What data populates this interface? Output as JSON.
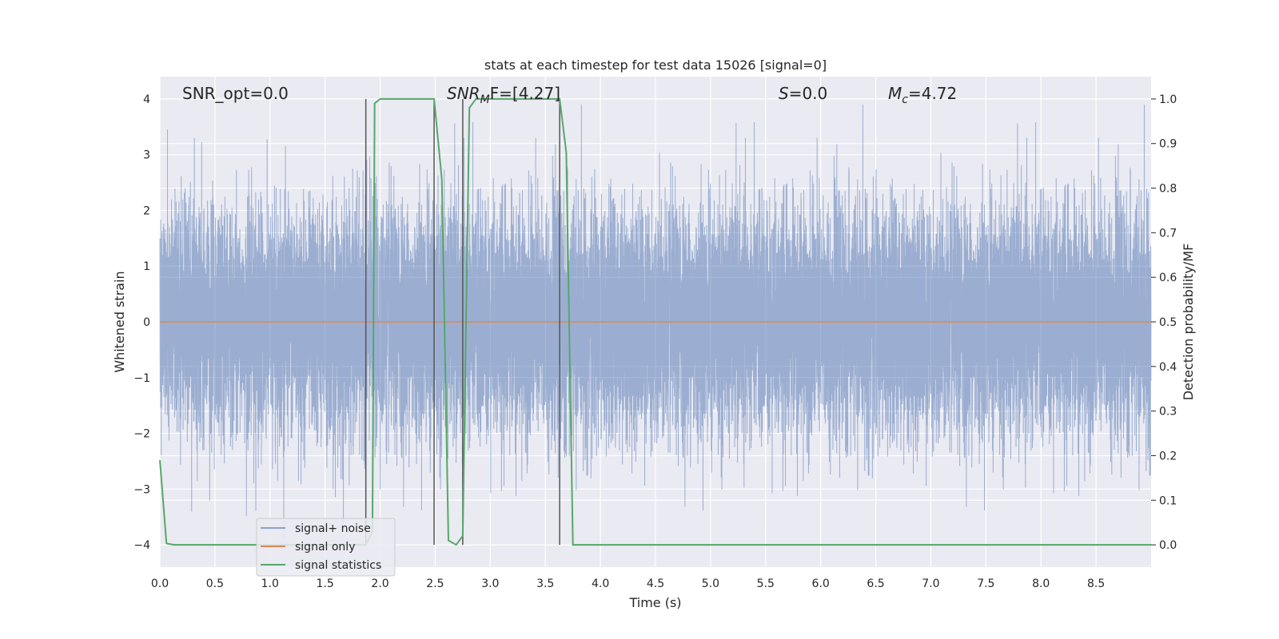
{
  "chart_data": {
    "type": "line",
    "title": "stats at each timestep for test data 15026 [signal=0]",
    "xlabel": "Time (s)",
    "ylabel": "Whitened strain",
    "y2label": "Detection probability/MF",
    "xlim": [
      0.0,
      9.0
    ],
    "ylim": [
      -4.4,
      4.4
    ],
    "y2lim": [
      -0.05,
      1.05
    ],
    "x_ticks": [
      "0.0",
      "0.5",
      "1.0",
      "1.5",
      "2.0",
      "2.5",
      "3.0",
      "3.5",
      "4.0",
      "4.5",
      "5.0",
      "5.5",
      "6.0",
      "6.5",
      "7.0",
      "7.5",
      "8.0",
      "8.5"
    ],
    "y_ticks": [
      "−4",
      "−3",
      "−2",
      "−1",
      "0",
      "1",
      "2",
      "3",
      "4"
    ],
    "y2_ticks": [
      "0.0",
      "0.1",
      "0.2",
      "0.3",
      "0.4",
      "0.5",
      "0.6",
      "0.7",
      "0.8",
      "0.9",
      "1.0"
    ],
    "grid": true,
    "legend_position": "lower-left",
    "annotations": {
      "snr_opt": "SNR_opt=0.0",
      "snr_mf_main": "SNR",
      "snr_mf_sub": "M",
      "snr_mf_rest": "F=[4.27]",
      "s_main": "S",
      "s_rest": "=0.0",
      "mc_main": "M",
      "mc_sub": "c",
      "mc_rest": "=4.72"
    },
    "vertical_lines_x": [
      1.87,
      2.49,
      2.75,
      3.63
    ],
    "vertical_lines_range": [
      0.0,
      1.0
    ],
    "series": [
      {
        "name": "signal+ noise",
        "color": "#4c72b0",
        "style": "noise",
        "description_values": {
          "sample_rate_hz": 2048,
          "typical_std": 1.0
        }
      },
      {
        "name": "signal only",
        "color": "#dd8452",
        "x": [
          0.0,
          9.0
        ],
        "y": [
          0.0,
          0.0
        ]
      },
      {
        "name": "signal statistics",
        "color": "#55a868",
        "axis": "right",
        "x": [
          0.0,
          0.06,
          0.13,
          1.87,
          1.93,
          1.95,
          2.0,
          2.49,
          2.56,
          2.62,
          2.69,
          2.75,
          2.81,
          2.87,
          3.0,
          3.5,
          3.63,
          3.69,
          3.75,
          3.81,
          9.0
        ],
        "y": [
          0.19,
          0.003,
          0.0,
          0.0,
          0.03,
          0.99,
          1.0,
          1.0,
          0.82,
          0.01,
          0.0,
          0.02,
          0.98,
          1.0,
          1.0,
          1.0,
          1.0,
          0.88,
          0.0,
          0.0,
          0.0
        ]
      }
    ]
  }
}
